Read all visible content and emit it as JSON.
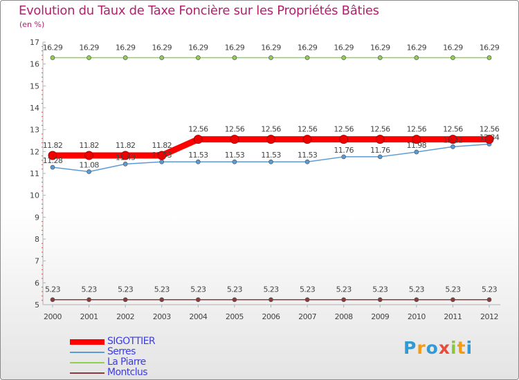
{
  "chart_data": {
    "type": "line",
    "title": "Evolution du Taux de Taxe Foncière sur les Propriétés Bâties",
    "ylabel": "(en %)",
    "xlabel": "",
    "ylim": [
      5,
      17
    ],
    "yticks": [
      "5",
      "6",
      "7",
      "8",
      "9",
      "10",
      "11",
      "12",
      "13",
      "14",
      "15",
      "16",
      "17"
    ],
    "categories": [
      "2000",
      "2001",
      "2002",
      "2003",
      "2004",
      "2005",
      "2006",
      "2007",
      "2008",
      "2009",
      "2010",
      "2011",
      "2012"
    ],
    "grid": false,
    "series": [
      {
        "name": "SIGOTTIER",
        "color": "#ff0000",
        "values": [
          11.82,
          11.82,
          11.82,
          11.82,
          12.56,
          12.56,
          12.56,
          12.56,
          12.56,
          12.56,
          12.56,
          12.56,
          12.56
        ],
        "labels": [
          "11.82",
          "11.82",
          "11.82",
          "11.82",
          "12.56",
          "12.56",
          "12.56",
          "12.56",
          "12.56",
          "12.56",
          "12.56",
          "12.56",
          "12.56"
        ]
      },
      {
        "name": "Serres",
        "color": "#5b9bd5",
        "values": [
          11.28,
          11.08,
          11.43,
          11.53,
          11.53,
          11.53,
          11.53,
          11.53,
          11.76,
          11.76,
          11.98,
          12.22,
          12.34
        ],
        "labels": [
          "11.28",
          "11.08",
          "11.43",
          "11.53",
          "11.53",
          "11.53",
          "11.53",
          "11.53",
          "11.76",
          "11.76",
          "11.98",
          "12.22",
          "12.34"
        ]
      },
      {
        "name": "La Piarre",
        "color": "#8fd14f",
        "values": [
          16.29,
          16.29,
          16.29,
          16.29,
          16.29,
          16.29,
          16.29,
          16.29,
          16.29,
          16.29,
          16.29,
          16.29,
          16.29
        ],
        "labels": [
          "16.29",
          "16.29",
          "16.29",
          "16.29",
          "16.29",
          "16.29",
          "16.29",
          "16.29",
          "16.29",
          "16.29",
          "16.29",
          "16.29",
          "16.29"
        ]
      },
      {
        "name": "Montclus",
        "color": "#8b3a3a",
        "values": [
          5.23,
          5.23,
          5.23,
          5.23,
          5.23,
          5.23,
          5.23,
          5.23,
          5.23,
          5.23,
          5.23,
          5.23,
          5.23
        ],
        "labels": [
          "5.23",
          "5.23",
          "5.23",
          "5.23",
          "5.23",
          "5.23",
          "5.23",
          "5.23",
          "5.23",
          "5.23",
          "5.23",
          "5.23",
          "5.23"
        ]
      }
    ],
    "legend_position": "bottom-left"
  },
  "brand": {
    "letters": [
      "P",
      "r",
      "o",
      "x",
      "i",
      "t",
      "i"
    ],
    "colors": [
      "#2e9ad6",
      "#f39c12",
      "#2e9ad6",
      "#e74c3c",
      "#8cc63f",
      "#f39c12",
      "#2e9ad6"
    ]
  }
}
